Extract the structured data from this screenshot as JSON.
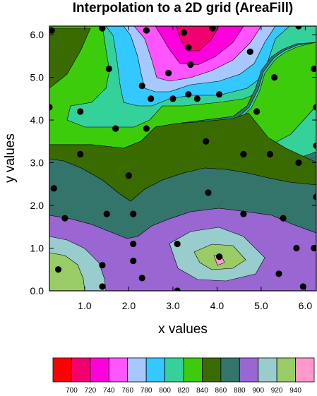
{
  "chart_data": {
    "type": "contour",
    "title": "Interpolation to a 2D grid (AreaFill)",
    "xlabel": "x values",
    "ylabel": "y values",
    "xlim": [
      0.2,
      6.25
    ],
    "ylim": [
      0.0,
      6.2
    ],
    "x_ticks": [
      1.0,
      2.0,
      3.0,
      4.0,
      5.0,
      6.0
    ],
    "x_tick_labels": [
      "1.0",
      "2.0",
      "3.0",
      "4.0",
      "5.0",
      "6.0"
    ],
    "y_ticks": [
      0.0,
      1.0,
      2.0,
      3.0,
      4.0,
      5.0,
      6.0
    ],
    "y_tick_labels": [
      "0.0",
      "1.0",
      "2.0",
      "3.0",
      "4.0",
      "5.0",
      "6.0"
    ],
    "colorbar": {
      "placement": "bottom",
      "levels": [
        700,
        720,
        740,
        760,
        780,
        800,
        820,
        840,
        860,
        880,
        900,
        920,
        940
      ],
      "level_labels": [
        "700",
        "720",
        "740",
        "760",
        "780",
        "800",
        "820",
        "840",
        "860",
        "880",
        "900",
        "920",
        "940"
      ],
      "colors": [
        "#ff0000",
        "#f2006e",
        "#ff00dc",
        "#ff55ff",
        "#a6c8ff",
        "#33c8ff",
        "#35d19a",
        "#3ccc0c",
        "#3a6b00",
        "#33756b",
        "#9966d2",
        "#99cccc",
        "#99cc66",
        "#ff99cc"
      ]
    },
    "points": [
      [
        0.25,
        6.1
      ],
      [
        1.4,
        6.15
      ],
      [
        2.4,
        6.1
      ],
      [
        3.35,
        5.7
      ],
      [
        3.25,
        6.05
      ],
      [
        3.9,
        6.15
      ],
      [
        4.75,
        5.6
      ],
      [
        5.85,
        6.2
      ],
      [
        1.55,
        5.2
      ],
      [
        2.9,
        5.1
      ],
      [
        3.4,
        5.3
      ],
      [
        5.3,
        5.0
      ],
      [
        6.2,
        5.2
      ],
      [
        2.3,
        4.8
      ],
      [
        3.35,
        4.6
      ],
      [
        4.05,
        4.6
      ],
      [
        2.5,
        4.5
      ],
      [
        3.0,
        4.5
      ],
      [
        3.55,
        4.5
      ],
      [
        0.2,
        4.3
      ],
      [
        0.9,
        4.2
      ],
      [
        4.9,
        4.2
      ],
      [
        6.25,
        4.3
      ],
      [
        1.7,
        3.8
      ],
      [
        2.4,
        3.8
      ],
      [
        3.75,
        3.5
      ],
      [
        6.25,
        3.4
      ],
      [
        0.9,
        3.2
      ],
      [
        4.6,
        3.2
      ],
      [
        5.2,
        3.2
      ],
      [
        5.85,
        3.0
      ],
      [
        2.0,
        2.7
      ],
      [
        0.3,
        2.4
      ],
      [
        3.8,
        2.3
      ],
      [
        6.25,
        2.2
      ],
      [
        0.55,
        1.7
      ],
      [
        1.5,
        1.8
      ],
      [
        2.1,
        1.8
      ],
      [
        4.6,
        1.8
      ],
      [
        5.5,
        1.7
      ],
      [
        2.1,
        1.1
      ],
      [
        3.1,
        1.1
      ],
      [
        5.8,
        1.0
      ],
      [
        6.2,
        1.0
      ],
      [
        4.05,
        0.8
      ],
      [
        2.1,
        0.7
      ],
      [
        1.4,
        0.6
      ],
      [
        0.4,
        0.5
      ],
      [
        5.4,
        0.4
      ],
      [
        2.3,
        0.3
      ],
      [
        1.4,
        0.1
      ],
      [
        3.1,
        0.0
      ],
      [
        5.95,
        0.1
      ]
    ]
  }
}
